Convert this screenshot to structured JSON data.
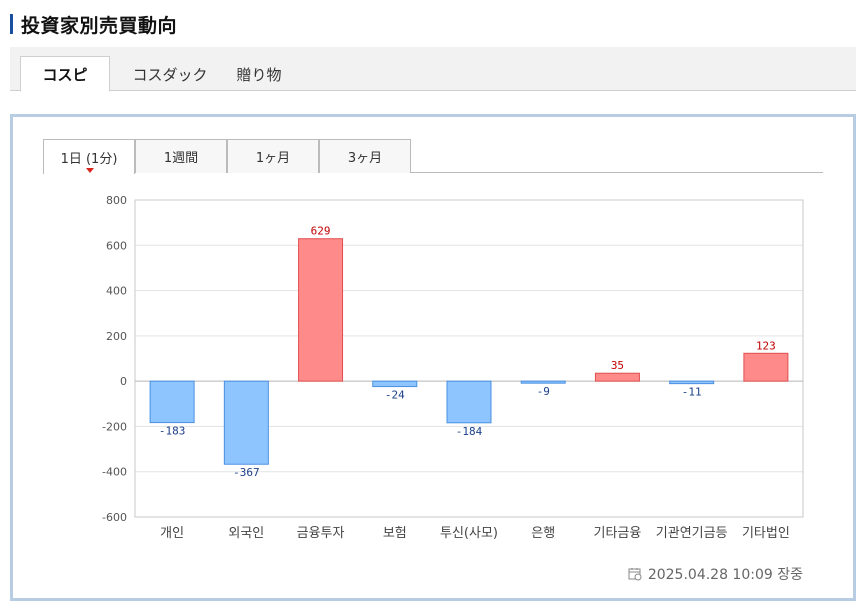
{
  "header": {
    "title": "投資家別売買動向"
  },
  "market_tabs": [
    {
      "label": "コスピ",
      "active": true
    },
    {
      "label": "コスダック",
      "active": false
    },
    {
      "label": "贈り物",
      "active": false
    }
  ],
  "period_tabs": [
    {
      "label": "1日 (1分)",
      "active": true
    },
    {
      "label": "1週間",
      "active": false
    },
    {
      "label": "1ヶ月",
      "active": false
    },
    {
      "label": "3ヶ月",
      "active": false
    }
  ],
  "chart_data": {
    "type": "bar",
    "categories": [
      "개인",
      "외국인",
      "금융투자",
      "보험",
      "투신(사모)",
      "은행",
      "기타금융",
      "기관연기금등",
      "기타법인"
    ],
    "values": [
      -183,
      -367,
      629,
      -24,
      -184,
      -9,
      35,
      -11,
      123
    ],
    "data_labels": [
      "-183",
      "-367",
      "629",
      "-24",
      "-184",
      "-9",
      "35",
      "-11",
      "123"
    ],
    "ylim": [
      -600,
      800
    ],
    "yticks": [
      800,
      600,
      400,
      200,
      0,
      -200,
      -400,
      -600
    ],
    "grid": true,
    "title": "",
    "xlabel": "",
    "ylabel": "",
    "colors": {
      "positive_fill": "#ff8a8a",
      "positive_stroke": "#e05050",
      "negative_fill": "#8ec5ff",
      "negative_stroke": "#4a90e2",
      "positive_label": "#c00000",
      "negative_label": "#1a3f8a"
    }
  },
  "footer": {
    "timestamp": "2025.04.28 10:09 장중",
    "icon": "calendar-icon"
  }
}
